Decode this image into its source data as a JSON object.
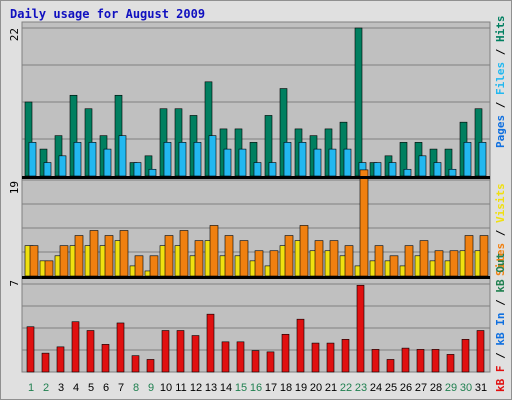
{
  "title": "Daily usage for August 2009",
  "colors": {
    "hits": "#007f60",
    "files": "#22b8f0",
    "pages": "#1070e0",
    "sites": "#f08010",
    "visits": "#f0e010",
    "kbin": "#e01010",
    "kbout": "#208050",
    "weekend": "#208050",
    "weekday": "#000000",
    "sep": "#000000",
    "plot_bg": "#c0c0c0"
  },
  "axis_max": {
    "hits": "22",
    "sites": "19",
    "kb": "7"
  },
  "legend": {
    "top": [
      {
        "text": "Pages",
        "color": "#1070e0"
      },
      {
        "text": " / ",
        "color": "#000000"
      },
      {
        "text": "Files",
        "color": "#22b8f0"
      },
      {
        "text": " / ",
        "color": "#000000"
      },
      {
        "text": "Hits",
        "color": "#007f60"
      }
    ],
    "mid": [
      {
        "text": "Sites",
        "color": "#f08010"
      },
      {
        "text": " / ",
        "color": "#000000"
      },
      {
        "text": "Visits",
        "color": "#f0e010"
      }
    ],
    "bot": [
      {
        "text": "kB F",
        "color": "#e01010"
      },
      {
        "text": " / ",
        "color": "#000000"
      },
      {
        "text": "kB In",
        "color": "#1070e0"
      },
      {
        "text": " / ",
        "color": "#000000"
      },
      {
        "text": "kB Out",
        "color": "#208050"
      }
    ]
  },
  "chart_data": {
    "type": "bar",
    "categories": [
      "1",
      "2",
      "3",
      "4",
      "5",
      "6",
      "7",
      "8",
      "9",
      "10",
      "11",
      "12",
      "13",
      "14",
      "15",
      "16",
      "17",
      "18",
      "19",
      "20",
      "21",
      "22",
      "23",
      "24",
      "25",
      "26",
      "27",
      "28",
      "29",
      "30",
      "31"
    ],
    "weekend_days": [
      "1",
      "2",
      "8",
      "9",
      "15",
      "16",
      "22",
      "23",
      "29",
      "30"
    ],
    "series": [
      {
        "name": "Hits",
        "panel": "top",
        "values": [
          11,
          4,
          6,
          12,
          10,
          6,
          12,
          2,
          3,
          10,
          10,
          9,
          14,
          7,
          7,
          5,
          9,
          13,
          7,
          6,
          7,
          8,
          22,
          2,
          3,
          5,
          5,
          4,
          4,
          8,
          10
        ]
      },
      {
        "name": "Files",
        "panel": "top",
        "values": [
          5,
          2,
          3,
          5,
          5,
          4,
          6,
          2,
          1,
          5,
          5,
          5,
          6,
          4,
          4,
          2,
          2,
          5,
          5,
          4,
          4,
          4,
          2,
          2,
          2,
          1,
          3,
          2,
          1,
          5,
          5
        ]
      },
      {
        "name": "Visits",
        "panel": "mid",
        "values": [
          6,
          3,
          4,
          6,
          6,
          6,
          7,
          2,
          1,
          6,
          6,
          4,
          7,
          4,
          4,
          3,
          2,
          6,
          7,
          5,
          5,
          4,
          2,
          3,
          3,
          2,
          4,
          3,
          3,
          5,
          5
        ]
      },
      {
        "name": "Sites",
        "panel": "mid",
        "values": [
          6,
          3,
          6,
          8,
          9,
          8,
          9,
          4,
          4,
          8,
          9,
          7,
          10,
          8,
          7,
          5,
          5,
          8,
          10,
          7,
          7,
          6,
          21,
          6,
          4,
          6,
          7,
          5,
          5,
          8,
          8
        ]
      },
      {
        "name": "kB In",
        "panel": "bot",
        "values": [
          3.6,
          1.5,
          2.0,
          4.0,
          3.3,
          2.2,
          3.9,
          1.3,
          1.0,
          3.3,
          3.3,
          2.9,
          4.6,
          2.4,
          2.4,
          1.7,
          1.6,
          3.0,
          4.2,
          2.3,
          2.3,
          2.6,
          6.9,
          1.8,
          1.0,
          1.9,
          1.8,
          1.8,
          1.4,
          2.6,
          3.3
        ]
      }
    ],
    "ylim": {
      "top": [
        0,
        22
      ],
      "mid": [
        0,
        19
      ],
      "bot": [
        0,
        7
      ]
    }
  }
}
